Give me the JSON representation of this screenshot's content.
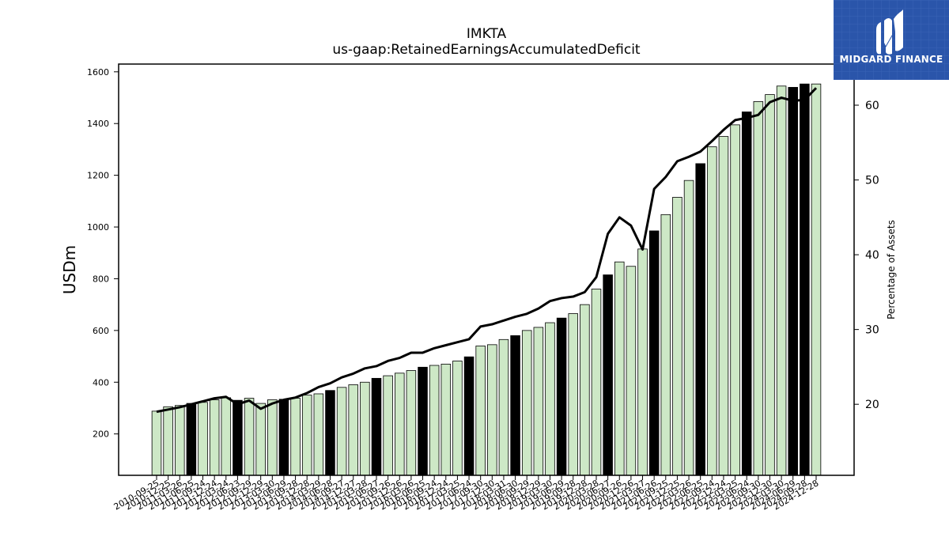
{
  "chart_data": {
    "type": "bar",
    "title": "IMKTA",
    "subtitle": "us-gaap:RetainedEarningsAccumulatedDeficit",
    "ylabel": "USDm",
    "y2label": "Percentage of Assets",
    "ylim": [
      40,
      1630
    ],
    "y2lim": [
      10.5,
      65.5
    ],
    "yticks": [
      200,
      400,
      600,
      800,
      1000,
      1200,
      1400,
      1600
    ],
    "y2ticks": [
      20,
      30,
      40,
      50,
      60
    ],
    "categories": [
      "2010-09-25",
      "2010-12-25",
      "2011-03-26",
      "2011-06-25",
      "2011-09-24",
      "2011-12-24",
      "2012-03-24",
      "2012-06-23",
      "2012-09-29",
      "2012-12-29",
      "2013-03-30",
      "2013-06-29",
      "2013-09-28",
      "2013-12-28",
      "2014-03-29",
      "2014-06-28",
      "2014-09-27",
      "2014-12-27",
      "2015-03-28",
      "2015-06-27",
      "2015-09-26",
      "2015-12-26",
      "2016-03-26",
      "2016-06-25",
      "2016-09-24",
      "2016-12-24",
      "2017-03-25",
      "2017-06-24",
      "2017-09-30",
      "2017-12-30",
      "2018-03-31",
      "2018-06-30",
      "2018-09-29",
      "2018-12-29",
      "2019-03-30",
      "2019-06-29",
      "2019-09-28",
      "2019-12-28",
      "2020-03-28",
      "2020-06-27",
      "2020-09-26",
      "2020-12-26",
      "2021-03-27",
      "2021-06-26",
      "2021-09-25",
      "2021-12-25",
      "2022-03-26",
      "2022-06-25",
      "2022-09-24",
      "2022-12-24",
      "2023-03-25",
      "2023-06-24",
      "2023-09-30",
      "2023-12-30",
      "2024-03-30",
      "2024-06-29",
      "2024-09-28",
      "2024-12-28"
    ],
    "values": [
      288,
      305,
      310,
      318,
      322,
      332,
      340,
      330,
      338,
      318,
      332,
      334,
      338,
      350,
      355,
      368,
      380,
      390,
      400,
      415,
      425,
      435,
      445,
      458,
      465,
      470,
      482,
      498,
      540,
      545,
      565,
      580,
      600,
      612,
      630,
      648,
      665,
      700,
      760,
      815,
      865,
      848,
      915,
      985,
      1048,
      1115,
      1180,
      1245,
      1310,
      1350,
      1395,
      1445,
      1485,
      1512,
      1545,
      1540,
      1553,
      1553
    ],
    "highlight_fiscal_year_end": [
      false,
      false,
      false,
      true,
      false,
      false,
      false,
      true,
      false,
      false,
      false,
      true,
      false,
      false,
      false,
      true,
      false,
      false,
      false,
      true,
      false,
      false,
      false,
      true,
      false,
      false,
      false,
      true,
      false,
      false,
      false,
      true,
      false,
      false,
      false,
      true,
      false,
      false,
      false,
      true,
      false,
      false,
      false,
      true,
      false,
      false,
      false,
      true,
      false,
      false,
      false,
      true,
      false,
      false,
      false,
      true,
      true,
      false
    ],
    "pct_of_assets": [
      19.0,
      19.3,
      19.6,
      20.0,
      20.4,
      20.8,
      21.0,
      20.0,
      20.5,
      19.4,
      20.1,
      20.6,
      20.9,
      21.5,
      22.3,
      22.8,
      23.6,
      24.1,
      24.8,
      25.1,
      25.8,
      26.2,
      26.9,
      26.9,
      27.5,
      27.9,
      28.3,
      28.7,
      30.4,
      30.7,
      31.2,
      31.7,
      32.1,
      32.8,
      33.8,
      34.2,
      34.4,
      35.0,
      37.0,
      42.8,
      45.0,
      43.9,
      40.7,
      48.8,
      50.4,
      52.5,
      53.1,
      53.8,
      55.2,
      56.7,
      58.0,
      58.3,
      58.7,
      60.4,
      61.0,
      60.6,
      60.7,
      62.3
    ],
    "colors": {
      "bar": "#cde8c6",
      "bar_highlight": "#000000",
      "bar_edge": "#000000",
      "line": "#000000"
    },
    "grid": false,
    "legend": "none"
  },
  "logo": {
    "text": "MIDGARD FINANCE",
    "background": "#2a55aa"
  }
}
